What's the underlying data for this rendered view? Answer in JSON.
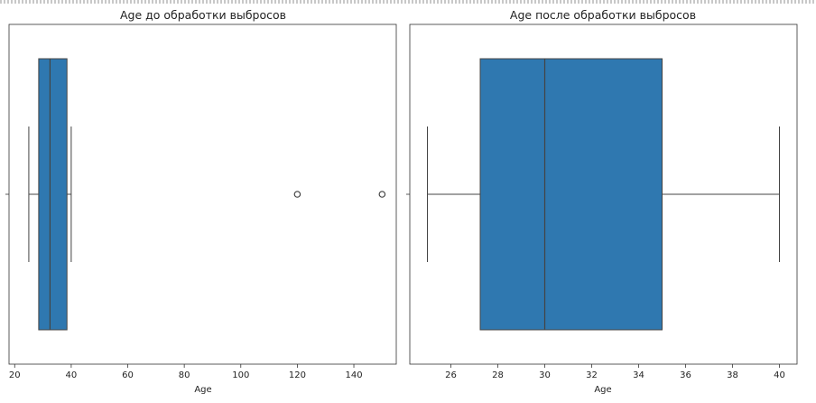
{
  "chart_data": [
    {
      "type": "boxplot",
      "title": "Age до обработки выбросов",
      "xlabel": "Age",
      "xlim": [
        18,
        155
      ],
      "xticks": [
        20,
        40,
        60,
        80,
        100,
        120,
        140
      ],
      "box": {
        "whisker_low": 25,
        "q1": 28.5,
        "median": 32.5,
        "q3": 38.5,
        "whisker_high": 40
      },
      "outliers": [
        120,
        150
      ],
      "color": "#2f78b0"
    },
    {
      "type": "boxplot",
      "title": "Age после обработки выбросов",
      "xlabel": "Age",
      "xlim": [
        24.25,
        40.75
      ],
      "xticks": [
        26,
        28,
        30,
        32,
        34,
        36,
        38,
        40
      ],
      "box": {
        "whisker_low": 25,
        "q1": 27.25,
        "median": 30,
        "q3": 35,
        "whisker_high": 40
      },
      "outliers": [],
      "color": "#2f78b0"
    }
  ]
}
